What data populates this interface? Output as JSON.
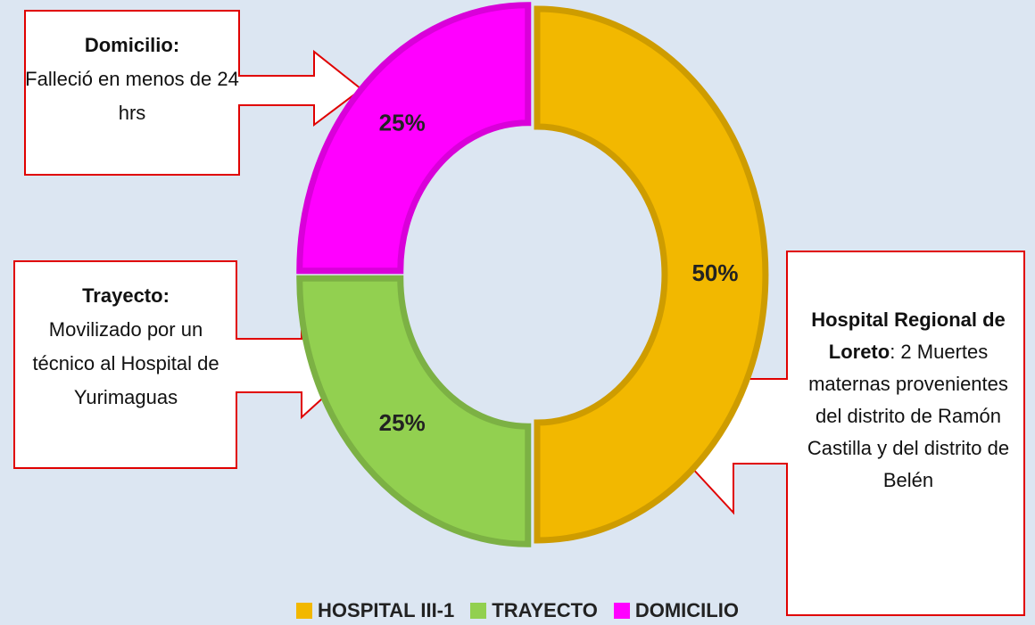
{
  "chart_data": {
    "type": "donut",
    "categories": [
      "HOSPITAL III-1",
      "TRAYECTO",
      "DOMICILIO"
    ],
    "values": [
      50,
      25,
      25
    ],
    "value_labels": [
      "50%",
      "25%",
      "25%"
    ],
    "colors": [
      "#f2b800",
      "#92d050",
      "#ff00ff"
    ],
    "legend": "bottom",
    "annotations": [
      {
        "title": "Domicilio:",
        "text": "Falleció en menos de 24 hrs"
      },
      {
        "title": "Trayecto:",
        "text": "Movilizado por un técnico al Hospital de Yurimaguas"
      },
      {
        "title": "Hospital Regional de Loreto",
        "text": ": 2 Muertes maternas provenientes del distrito de Ramón Castilla y del distrito de Belén"
      }
    ]
  }
}
